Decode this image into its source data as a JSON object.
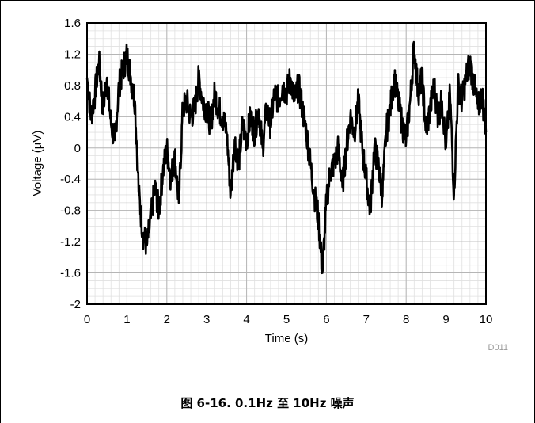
{
  "chart_data": {
    "type": "line",
    "title": "",
    "xlabel": "Time (s)",
    "ylabel": "Voltage (µV)",
    "xlim": [
      0,
      10
    ],
    "ylim": [
      -2,
      1.6
    ],
    "x_ticks": [
      "0",
      "1",
      "2",
      "3",
      "4",
      "5",
      "6",
      "7",
      "8",
      "9",
      "10"
    ],
    "y_ticks": [
      "1.6",
      "1.2",
      "0.8",
      "0.4",
      "0",
      "-0.4",
      "-0.8",
      "-1.2",
      "-1.6",
      "-2"
    ],
    "grid": true,
    "series_color": "#000000",
    "series": [
      {
        "x": [
          0,
          0.1,
          0.2,
          0.3,
          0.4,
          0.5,
          0.6,
          0.7,
          0.8,
          0.9,
          1.0,
          1.1,
          1.2,
          1.3,
          1.4,
          1.5,
          1.6,
          1.7,
          1.8,
          1.9,
          2.0,
          2.1,
          2.2,
          2.3,
          2.4,
          2.5,
          2.6,
          2.7,
          2.8,
          2.9,
          3.0,
          3.1,
          3.2,
          3.3,
          3.4,
          3.5,
          3.6,
          3.7,
          3.8,
          3.9,
          4.0,
          4.1,
          4.2,
          4.3,
          4.4,
          4.5,
          4.6,
          4.7,
          4.8,
          4.9,
          5.0,
          5.1,
          5.2,
          5.3,
          5.4,
          5.5,
          5.6,
          5.7,
          5.8,
          5.9,
          6.0,
          6.1,
          6.2,
          6.3,
          6.4,
          6.5,
          6.6,
          6.7,
          6.8,
          6.9,
          7.0,
          7.1,
          7.2,
          7.3,
          7.4,
          7.5,
          7.6,
          7.7,
          7.8,
          7.9,
          8.0,
          8.1,
          8.2,
          8.3,
          8.4,
          8.5,
          8.6,
          8.7,
          8.8,
          8.9,
          9.0,
          9.1,
          9.2,
          9.3,
          9.4,
          9.5,
          9.6,
          9.7,
          9.8,
          9.9,
          10.0
        ],
        "values": [
          0.9,
          0.4,
          0.7,
          1.1,
          0.5,
          0.9,
          0.3,
          0.1,
          0.8,
          1.0,
          1.2,
          0.9,
          0.6,
          -0.6,
          -1.1,
          -1.25,
          -0.9,
          -0.5,
          -0.8,
          -0.3,
          0.0,
          -0.4,
          -0.1,
          -0.7,
          0.5,
          0.6,
          0.4,
          0.5,
          0.9,
          0.6,
          0.5,
          0.3,
          0.7,
          0.5,
          0.4,
          0.2,
          -0.6,
          0.1,
          -0.2,
          0.3,
          0.1,
          0.4,
          0.2,
          0.5,
          0.0,
          0.5,
          0.3,
          0.7,
          0.6,
          0.8,
          0.7,
          0.9,
          0.6,
          0.8,
          0.5,
          0.2,
          -0.2,
          -0.6,
          -0.9,
          -1.6,
          -0.7,
          -0.3,
          -0.2,
          0.0,
          -0.5,
          0.0,
          0.4,
          0.2,
          0.6,
          0.0,
          -0.4,
          -0.8,
          0.0,
          -0.2,
          -0.6,
          0.2,
          0.5,
          0.9,
          0.6,
          0.3,
          0.1,
          0.6,
          1.3,
          0.7,
          0.9,
          0.2,
          0.5,
          0.8,
          0.4,
          0.6,
          0.0,
          0.7,
          -0.6,
          0.8,
          0.6,
          0.9,
          1.1,
          0.8,
          0.5,
          0.7,
          0.2
        ]
      }
    ],
    "source_id": "D011"
  },
  "caption": "图 6-16. 0.1Hz 至 10Hz 噪声"
}
